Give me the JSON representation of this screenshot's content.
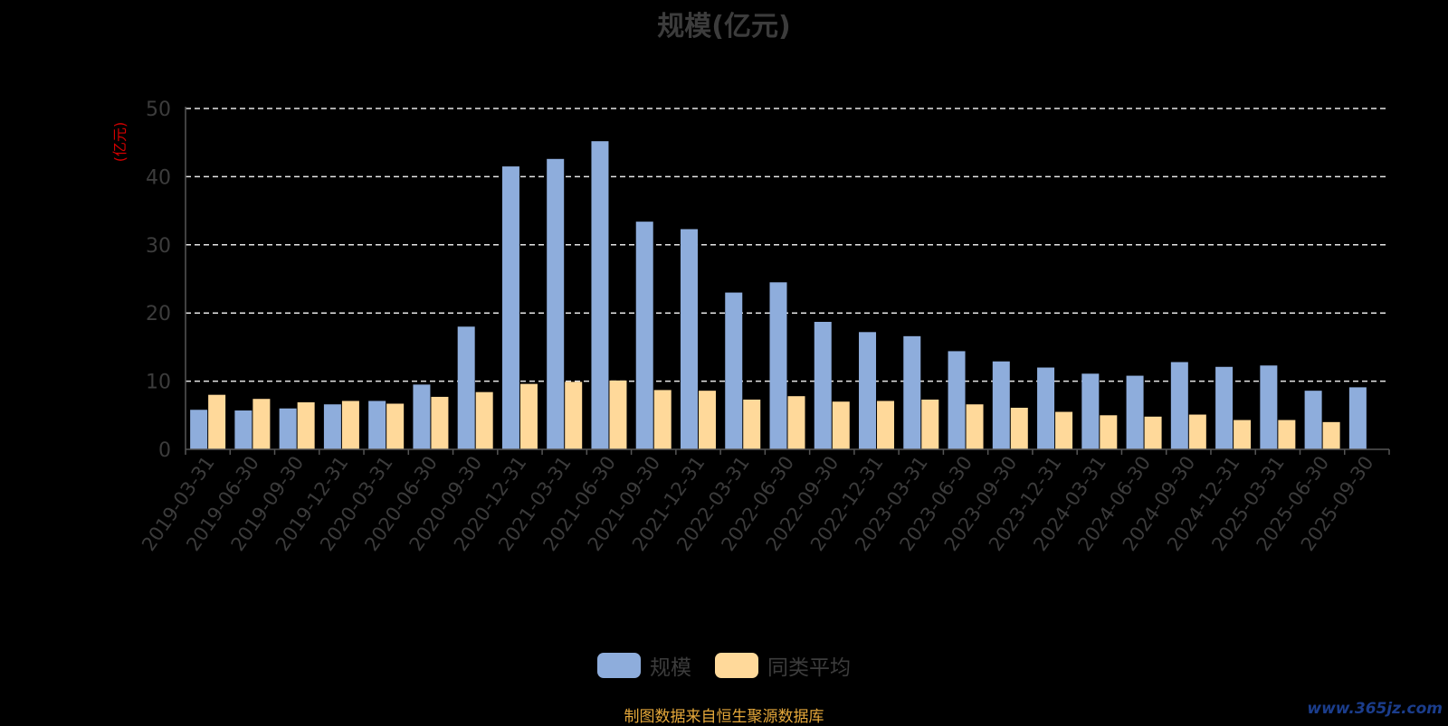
{
  "chart_data": {
    "type": "bar",
    "title": "规模(亿元)",
    "ylabel": "(亿元)",
    "xlabel": "",
    "ylim": [
      0,
      50
    ],
    "yticks": [
      0,
      10,
      20,
      30,
      40,
      50
    ],
    "grid": true,
    "legend_position": "bottom",
    "categories": [
      "2019-03-31",
      "2019-06-30",
      "2019-09-30",
      "2019-12-31",
      "2020-03-31",
      "2020-06-30",
      "2020-09-30",
      "2020-12-31",
      "2021-03-31",
      "2021-06-30",
      "2021-09-30",
      "2021-12-31",
      "2022-03-31",
      "2022-06-30",
      "2022-09-30",
      "2022-12-31",
      "2023-03-31",
      "2023-06-30",
      "2023-09-30",
      "2023-12-31",
      "2024-03-31",
      "2024-06-30",
      "2024-09-30",
      "2024-12-31",
      "2025-03-31",
      "2025-06-30",
      "2025-09-30"
    ],
    "series": [
      {
        "name": "规模",
        "color": "#8eaddc",
        "values": [
          5.8,
          5.7,
          6.0,
          6.6,
          7.1,
          9.5,
          18.0,
          41.5,
          42.6,
          45.2,
          33.4,
          32.3,
          23.0,
          24.5,
          18.7,
          17.2,
          16.6,
          14.4,
          12.9,
          12.0,
          11.1,
          10.8,
          12.8,
          12.1,
          12.3,
          8.6,
          9.1
        ]
      },
      {
        "name": "同类平均",
        "color": "#ffd99a",
        "values": [
          8.0,
          7.4,
          6.9,
          7.1,
          6.7,
          7.7,
          8.4,
          9.6,
          9.9,
          10.1,
          8.7,
          8.6,
          7.3,
          7.8,
          7.0,
          7.1,
          7.3,
          6.6,
          6.1,
          5.5,
          5.0,
          4.8,
          5.1,
          4.3,
          4.3,
          4.0,
          null
        ]
      }
    ]
  },
  "source_note": "制图数据来自恒生聚源数据库",
  "watermark": "www.365jz.com"
}
